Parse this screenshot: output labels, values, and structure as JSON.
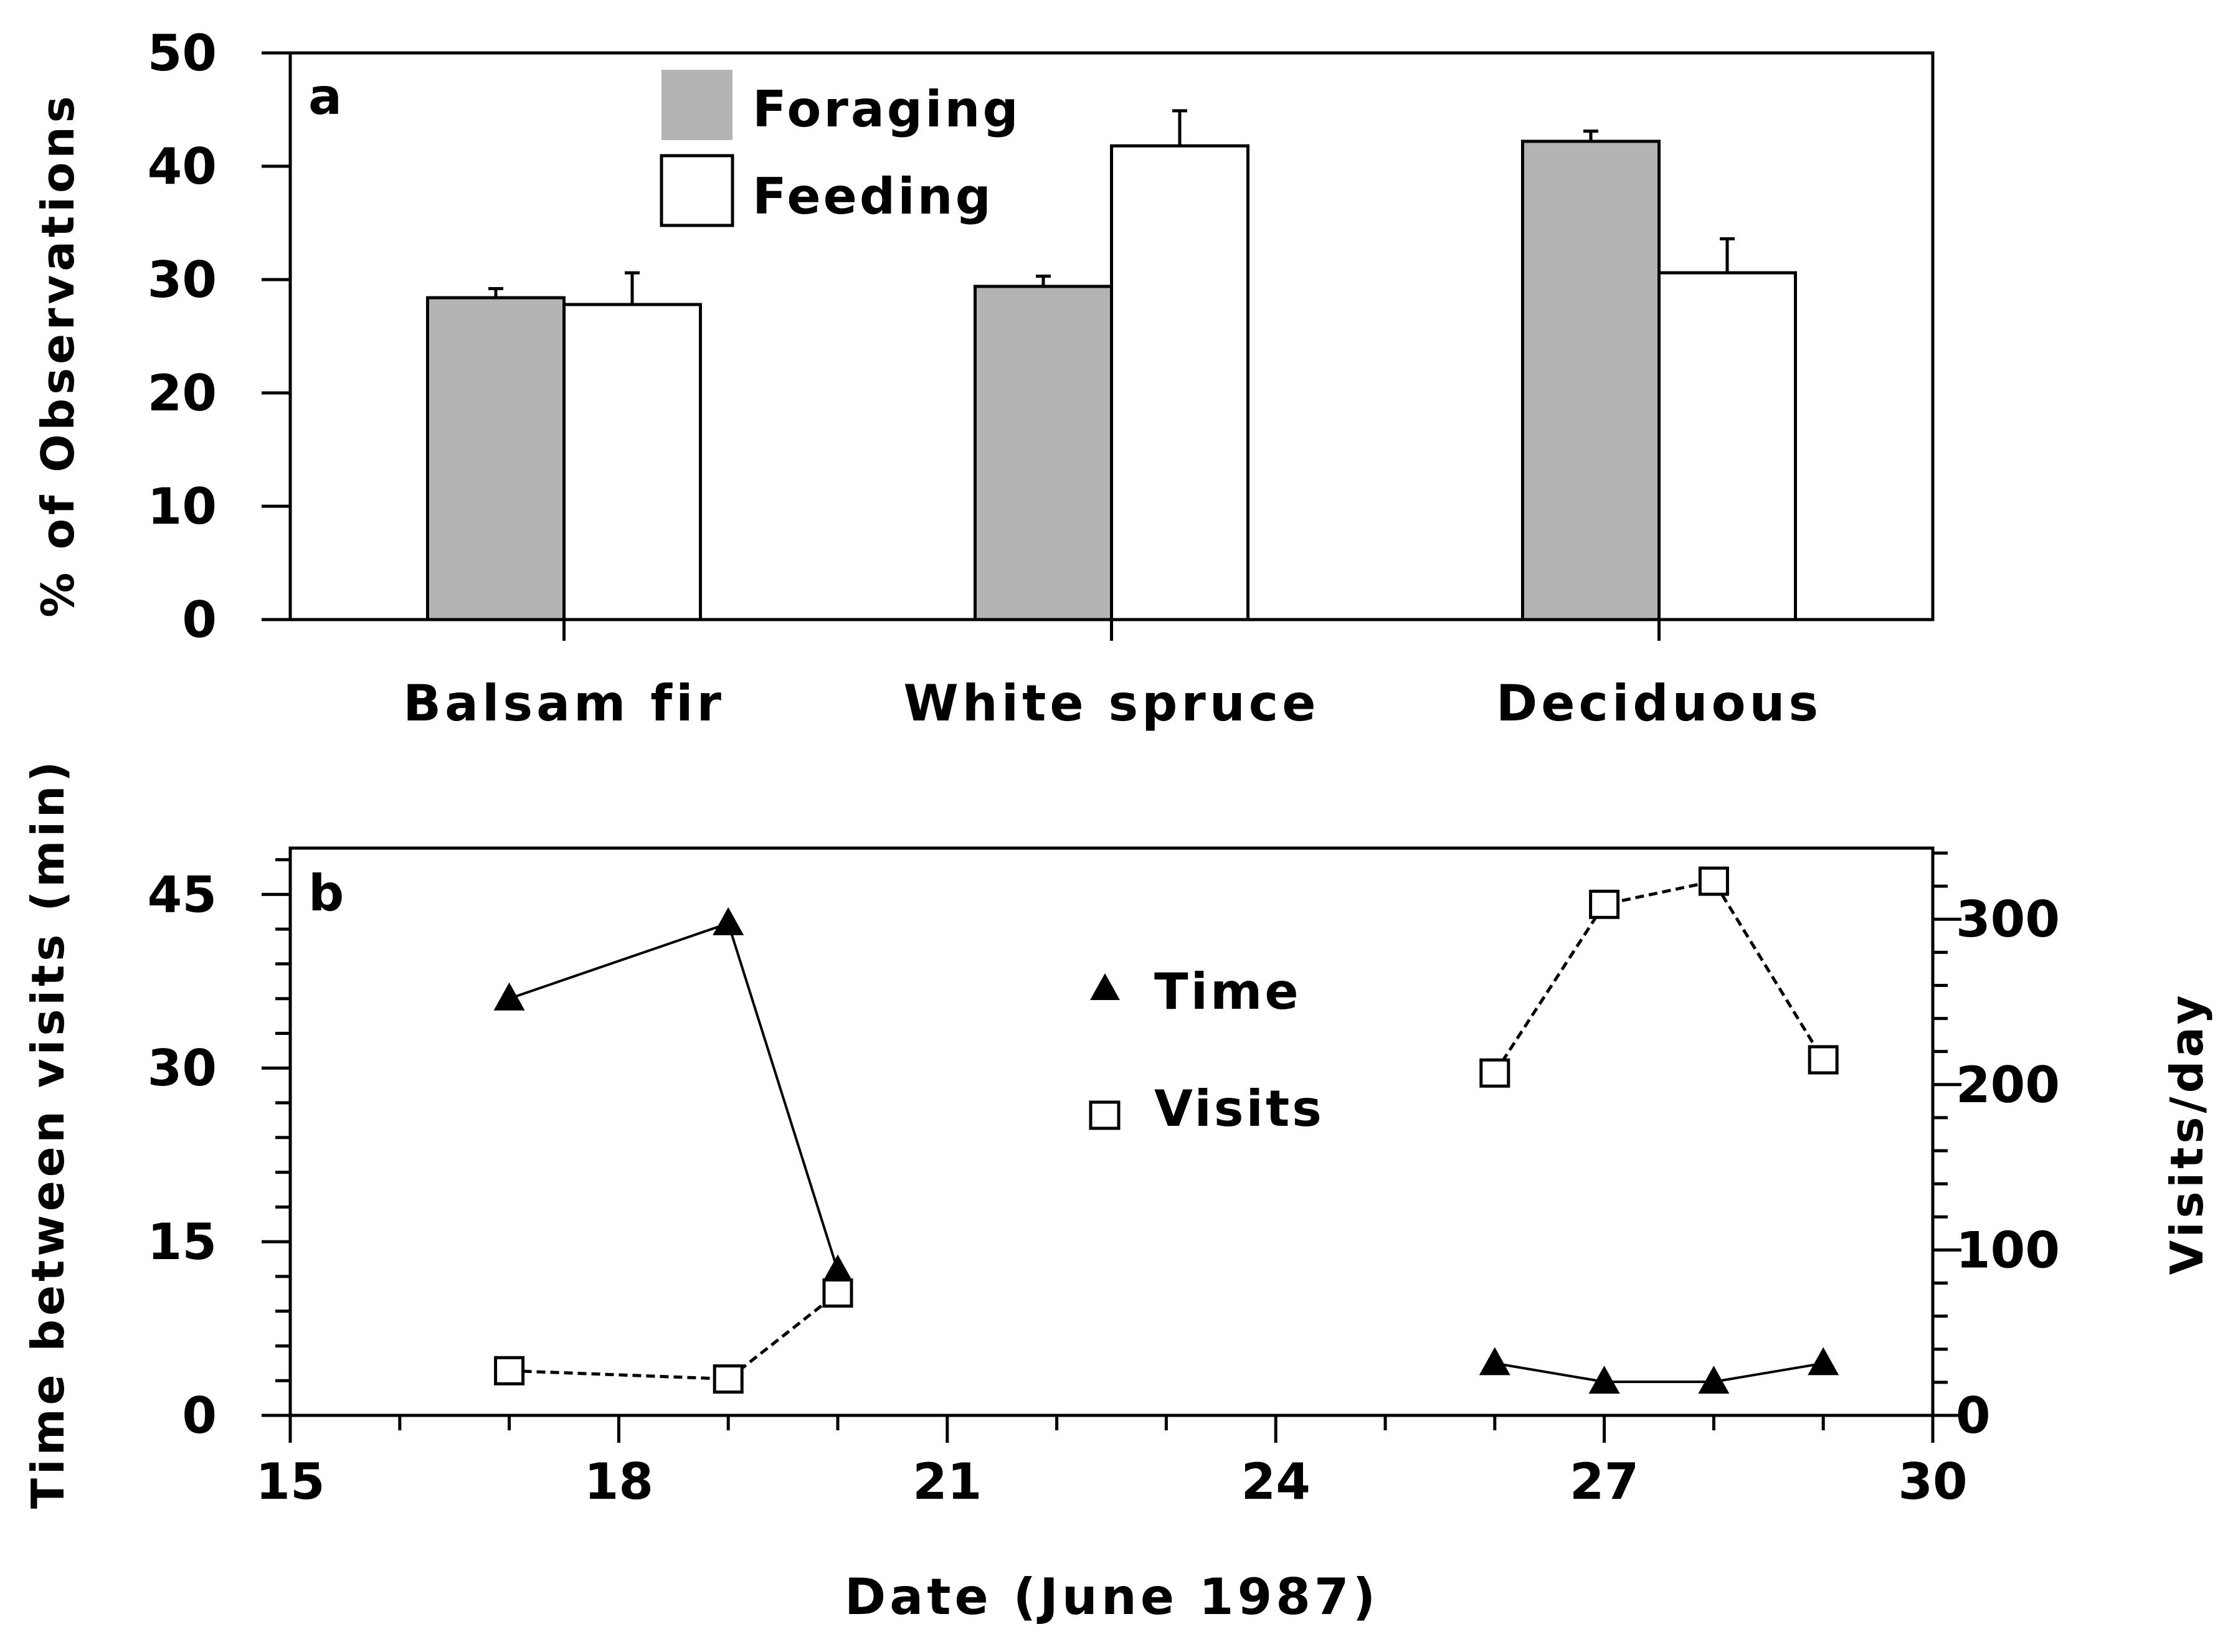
{
  "chart_data": [
    {
      "type": "bar",
      "panel_label": "a",
      "title": "",
      "xlabel": "",
      "ylabel": "% of Observations",
      "categories": [
        "Balsam fir",
        "White spruce",
        "Deciduous"
      ],
      "ylim": [
        0,
        50
      ],
      "yticks": [
        "0",
        "10",
        "20",
        "30",
        "40",
        "50"
      ],
      "legend_position": "top-center",
      "series": [
        {
          "name": "Foraging",
          "color": "#b4b4b4",
          "values": [
            28.4,
            29.4,
            42.2
          ],
          "errors": [
            0.8,
            0.9,
            0.9
          ]
        },
        {
          "name": "Feeding",
          "color": "#ffffff",
          "values": [
            27.8,
            41.8,
            30.6
          ],
          "errors": [
            2.8,
            3.1,
            3.0
          ]
        }
      ]
    },
    {
      "type": "line",
      "panel_label": "b",
      "title": "",
      "xlabel": "Date (June 1987)",
      "ylabel": "Time between visits (min)",
      "y2label": "Visits/day",
      "xlim": [
        15,
        30
      ],
      "ylim": [
        0,
        49
      ],
      "y2lim": [
        0,
        343
      ],
      "xticks": [
        "15",
        "18",
        "21",
        "24",
        "27",
        "30"
      ],
      "yticks": [
        "0",
        "15",
        "30",
        "45"
      ],
      "y2ticks": [
        "0",
        "100",
        "200",
        "300"
      ],
      "legend_position": "top-center",
      "series": [
        {
          "name": "Time",
          "axis": "left",
          "marker": "filled-triangle",
          "line": "solid",
          "segments": [
            {
              "x": [
                17,
                19,
                20
              ],
              "y": [
                36,
                42.5,
                12.5
              ]
            },
            {
              "x": [
                26,
                27,
                28,
                29
              ],
              "y": [
                4.5,
                2.9,
                2.9,
                4.5
              ]
            }
          ]
        },
        {
          "name": "Visits",
          "axis": "right",
          "marker": "open-square",
          "line": "dashed",
          "segments": [
            {
              "x": [
                17,
                19,
                20
              ],
              "y": [
                27,
                22,
                74
              ]
            },
            {
              "x": [
                26,
                27,
                28,
                29
              ],
              "y": [
                207,
                309,
                323,
                215
              ]
            }
          ]
        }
      ]
    }
  ]
}
